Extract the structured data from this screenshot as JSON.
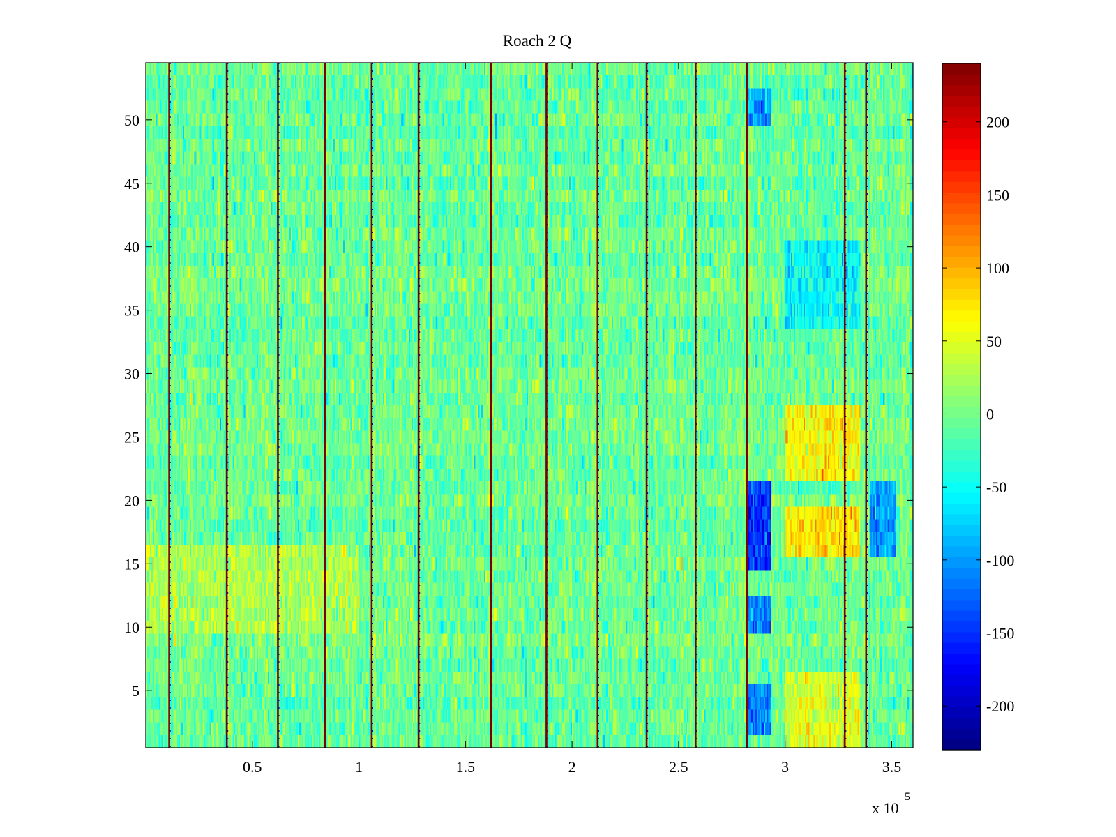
{
  "chart_data": {
    "type": "heatmap",
    "title": "Roach 2 Q",
    "xlabel": "",
    "ylabel": "",
    "x_range": [
      0,
      360000
    ],
    "y_range": [
      0.5,
      54.5
    ],
    "rows": 54,
    "columns": 540,
    "x_exponent_label": "x 10",
    "x_exponent_power": "5",
    "x_ticks": [
      {
        "value": 50000,
        "label": "0.5"
      },
      {
        "value": 100000,
        "label": "1"
      },
      {
        "value": 150000,
        "label": "1.5"
      },
      {
        "value": 200000,
        "label": "2"
      },
      {
        "value": 250000,
        "label": "2.5"
      },
      {
        "value": 300000,
        "label": "3"
      },
      {
        "value": 350000,
        "label": "3.5"
      }
    ],
    "y_ticks": [
      {
        "value": 5,
        "label": "5"
      },
      {
        "value": 10,
        "label": "10"
      },
      {
        "value": 15,
        "label": "15"
      },
      {
        "value": 20,
        "label": "20"
      },
      {
        "value": 25,
        "label": "25"
      },
      {
        "value": 30,
        "label": "30"
      },
      {
        "value": 35,
        "label": "35"
      },
      {
        "value": 40,
        "label": "40"
      },
      {
        "value": 45,
        "label": "45"
      },
      {
        "value": 50,
        "label": "50"
      }
    ],
    "colorbar": {
      "colormap": "jet",
      "range": [
        -230,
        240
      ],
      "ticks": [
        {
          "value": 200,
          "label": "200"
        },
        {
          "value": 150,
          "label": "150"
        },
        {
          "value": 100,
          "label": "100"
        },
        {
          "value": 50,
          "label": "50"
        },
        {
          "value": 0,
          "label": "0"
        },
        {
          "value": -50,
          "label": "-50"
        },
        {
          "value": -100,
          "label": "-100"
        },
        {
          "value": -150,
          "label": "-150"
        },
        {
          "value": -200,
          "label": "-200"
        }
      ]
    },
    "noise_mean": -5,
    "noise_std": 22,
    "vertical_spike_lines_x": [
      11000,
      38000,
      62000,
      84000,
      106000,
      128000,
      162000,
      188000,
      212000,
      235000,
      258000,
      282000,
      328000,
      338000
    ],
    "regions": [
      {
        "x": [
          283000,
          293000
        ],
        "y": [
          15,
          21
        ],
        "value_mean": -150
      },
      {
        "x": [
          283000,
          293000
        ],
        "y": [
          10,
          12
        ],
        "value_mean": -110
      },
      {
        "x": [
          283000,
          293000
        ],
        "y": [
          2,
          5
        ],
        "value_mean": -110
      },
      {
        "x": [
          283000,
          293000
        ],
        "y": [
          50,
          52
        ],
        "value_mean": -95
      },
      {
        "x": [
          300000,
          335000
        ],
        "y": [
          16,
          19
        ],
        "value_mean": 75
      },
      {
        "x": [
          300000,
          335000
        ],
        "y": [
          22,
          27
        ],
        "value_mean": 65
      },
      {
        "x": [
          300000,
          335000
        ],
        "y": [
          1,
          6
        ],
        "value_mean": 45
      },
      {
        "x": [
          340000,
          352000
        ],
        "y": [
          16,
          21
        ],
        "value_mean": -100
      },
      {
        "x": [
          300000,
          335000
        ],
        "y": [
          34,
          40
        ],
        "value_mean": -55
      },
      {
        "x": [
          0,
          100000
        ],
        "y": [
          10,
          16
        ],
        "value_mean": 25
      }
    ]
  }
}
